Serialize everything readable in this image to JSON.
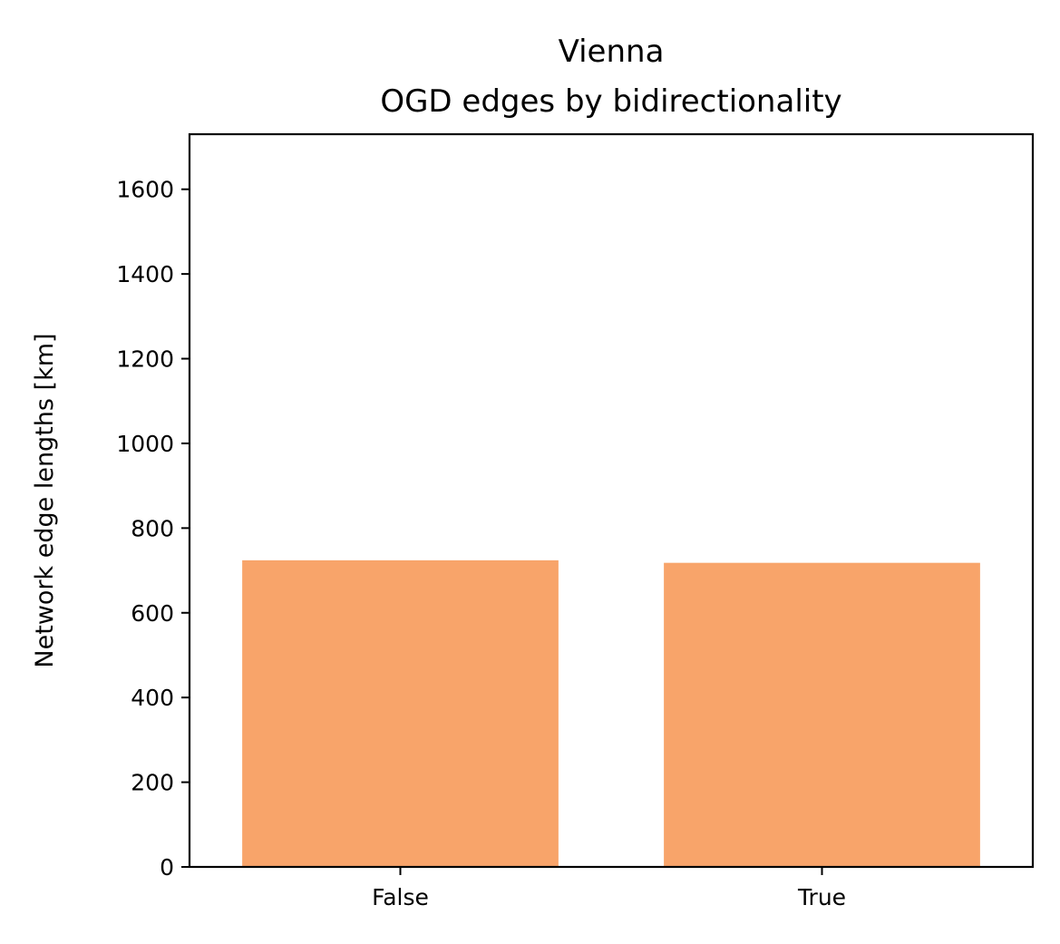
{
  "chart_data": {
    "type": "bar",
    "title_lines": [
      "Vienna",
      "OGD edges by bidirectionality"
    ],
    "xlabel": "",
    "ylabel": "Network edge lengths [km]",
    "categories": [
      "False",
      "True"
    ],
    "values": [
      724,
      718
    ],
    "ylim": [
      0,
      1730
    ],
    "yticks": [
      0,
      200,
      400,
      600,
      800,
      1000,
      1200,
      1400,
      1600
    ],
    "bar_color": "#f8a46a",
    "grid": false,
    "legend": "none"
  }
}
